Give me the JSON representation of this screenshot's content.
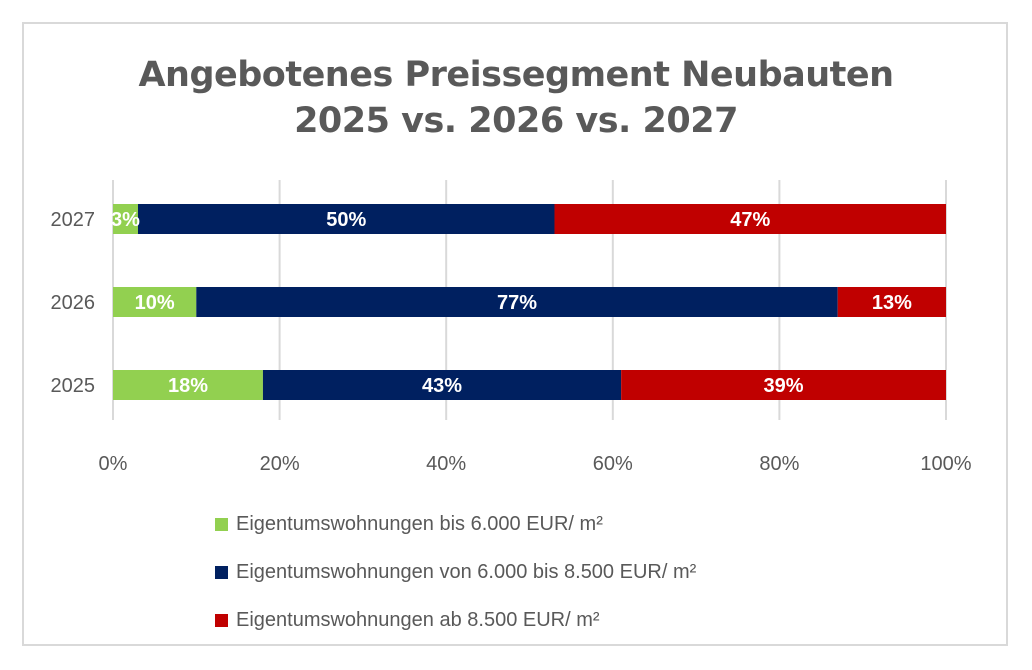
{
  "chart_data": {
    "type": "bar",
    "orientation": "horizontal",
    "stacked": "percent",
    "title": [
      "Angebotenes Preissegment Neubauten",
      "2025 vs. 2026 vs. 2027"
    ],
    "categories": [
      "2027",
      "2026",
      "2025"
    ],
    "series": [
      {
        "name": "Eigentumswohnungen bis 6.000 EUR/ m²",
        "color": "#92D050",
        "values": [
          3,
          10,
          18
        ],
        "labels": [
          "3%",
          "10%",
          "18%"
        ]
      },
      {
        "name": "Eigentumswohnungen von 6.000 bis 8.500 EUR/ m²",
        "color": "#002060",
        "values": [
          50,
          77,
          43
        ],
        "labels": [
          "50%",
          "77%",
          "43%"
        ]
      },
      {
        "name": "Eigentumswohnungen ab 8.500 EUR/ m²",
        "color": "#C00000",
        "values": [
          47,
          13,
          39
        ],
        "labels": [
          "47%",
          "13%",
          "39%"
        ]
      }
    ],
    "xlim": [
      0,
      100
    ],
    "xticks": [
      "0%",
      "20%",
      "40%",
      "60%",
      "80%",
      "100%"
    ],
    "grid": true,
    "legend_position": "bottom"
  }
}
